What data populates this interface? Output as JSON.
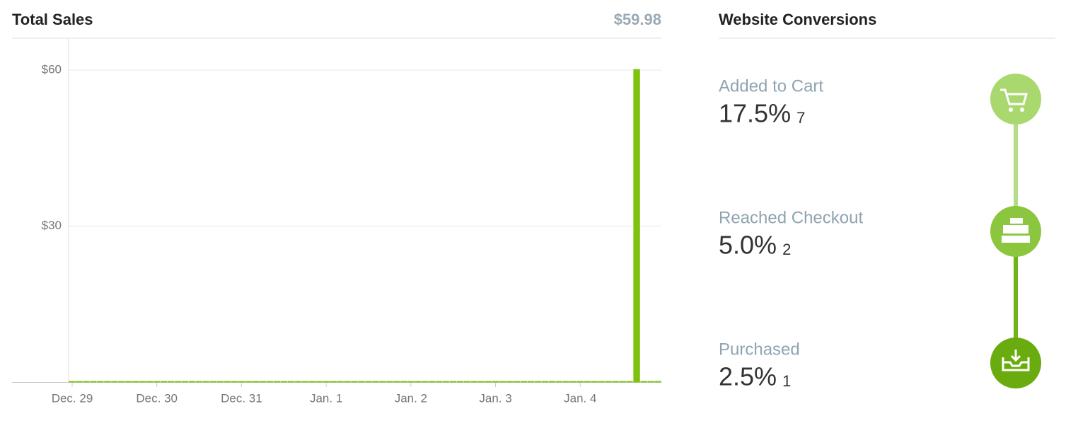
{
  "chart_data": {
    "type": "bar",
    "title": "Total Sales",
    "total": "$59.98",
    "categories": [
      "Dec. 29",
      null,
      null,
      null,
      null,
      null,
      null,
      null,
      null,
      null,
      null,
      null,
      "Dec. 30",
      null,
      null,
      null,
      null,
      null,
      null,
      null,
      null,
      null,
      null,
      null,
      "Dec. 31",
      null,
      null,
      null,
      null,
      null,
      null,
      null,
      null,
      null,
      null,
      null,
      "Jan. 1",
      null,
      null,
      null,
      null,
      null,
      null,
      null,
      null,
      null,
      null,
      null,
      "Jan. 2",
      null,
      null,
      null,
      null,
      null,
      null,
      null,
      null,
      null,
      null,
      null,
      "Jan. 3",
      null,
      null,
      null,
      null,
      null,
      null,
      null,
      null,
      null,
      null,
      null,
      "Jan. 4",
      null,
      null,
      null,
      null,
      null,
      null,
      null,
      null,
      null,
      null,
      null
    ],
    "values": [
      0,
      0,
      0,
      0,
      0,
      0,
      0,
      0,
      0,
      0,
      0,
      0,
      0,
      0,
      0,
      0,
      0,
      0,
      0,
      0,
      0,
      0,
      0,
      0,
      0,
      0,
      0,
      0,
      0,
      0,
      0,
      0,
      0,
      0,
      0,
      0,
      0,
      0,
      0,
      0,
      0,
      0,
      0,
      0,
      0,
      0,
      0,
      0,
      0,
      0,
      0,
      0,
      0,
      0,
      0,
      0,
      0,
      0,
      0,
      0,
      0,
      0,
      0,
      0,
      0,
      0,
      0,
      0,
      0,
      0,
      0,
      0,
      0,
      0,
      0,
      0,
      0,
      0,
      0,
      0,
      59.98,
      0,
      0,
      0
    ],
    "color": "#7dc20f",
    "ylim": [
      0,
      66
    ],
    "yticks": [
      {
        "value": 30,
        "label": "$30"
      },
      {
        "value": 60,
        "label": "$60"
      }
    ],
    "grid": true
  },
  "conversions": {
    "title": "Website Conversions",
    "steps": [
      {
        "label": "Added to Cart",
        "percent": "17.5%",
        "count": 7
      },
      {
        "label": "Reached Checkout",
        "percent": "5.0%",
        "count": 2
      },
      {
        "label": "Purchased",
        "percent": "2.5%",
        "count": 1
      }
    ]
  }
}
